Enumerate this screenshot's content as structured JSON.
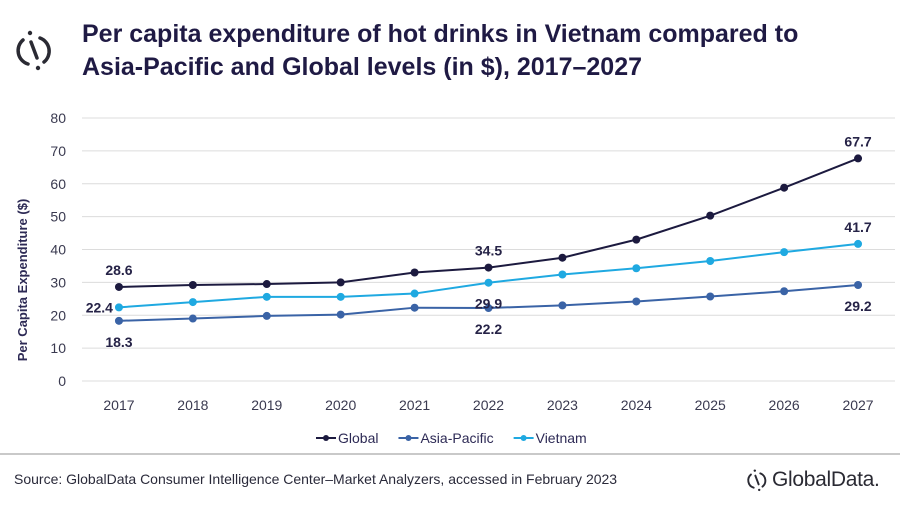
{
  "header": {
    "title_line1": "Per capita expenditure of hot drinks in Vietnam compared to",
    "title_line2": "Asia-Pacific and Global levels (in $), 2017–2027",
    "logo_icon": "globaldata-mark-icon"
  },
  "footer": {
    "source": "Source: GlobalData Consumer Intelligence Center–Market  Analyzers, accessed in February 2023",
    "brand": "GlobalData."
  },
  "chart_data": {
    "type": "line",
    "title": "Per capita expenditure of hot drinks in Vietnam compared to Asia-Pacific and Global levels (in $), 2017–2027",
    "xlabel": "",
    "ylabel": "Per Capita Expenditure ($)",
    "ylim": [
      0,
      80
    ],
    "yticks": [
      0,
      10,
      20,
      30,
      40,
      50,
      60,
      70,
      80
    ],
    "grid": true,
    "legend_position": "bottom",
    "categories": [
      "2017",
      "2018",
      "2019",
      "2020",
      "2021",
      "2022",
      "2023",
      "2024",
      "2025",
      "2026",
      "2027"
    ],
    "series": [
      {
        "name": "Global",
        "color": "#1c1a3f",
        "values": [
          28.6,
          29.2,
          29.5,
          30.0,
          33.0,
          34.5,
          37.5,
          43.0,
          50.3,
          58.8,
          67.7
        ],
        "labels": [
          {
            "index": 0,
            "text": "28.6",
            "pos": "above"
          },
          {
            "index": 5,
            "text": "34.5",
            "pos": "above"
          },
          {
            "index": 10,
            "text": "67.7",
            "pos": "above"
          }
        ]
      },
      {
        "name": "Asia-Pacific",
        "color": "#3a63a6",
        "values": [
          18.3,
          19.0,
          19.8,
          20.2,
          22.3,
          22.2,
          23.0,
          24.2,
          25.7,
          27.3,
          29.2
        ],
        "labels": [
          {
            "index": 0,
            "text": "18.3",
            "pos": "below"
          },
          {
            "index": 5,
            "text": "22.2",
            "pos": "below"
          },
          {
            "index": 10,
            "text": "29.2",
            "pos": "below"
          }
        ]
      },
      {
        "name": "Vietnam",
        "color": "#1fa9e1",
        "values": [
          22.4,
          24.0,
          25.6,
          25.6,
          26.6,
          29.9,
          32.4,
          34.3,
          36.5,
          39.2,
          41.7
        ],
        "labels": [
          {
            "index": 0,
            "text": "22.4",
            "pos": "left"
          },
          {
            "index": 5,
            "text": "29.9",
            "pos": "below"
          },
          {
            "index": 10,
            "text": "41.7",
            "pos": "above"
          }
        ]
      }
    ]
  }
}
